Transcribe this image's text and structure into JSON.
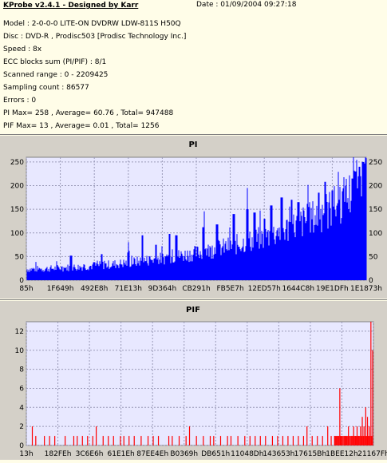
{
  "header": {
    "app_title": "KProbe v2.4.1 - Designed by Karr",
    "date": "Date : 01/09/2004 09:27:18"
  },
  "info_lines": [
    "Model : 2-0-0-0 LITE-ON DVDRW LDW-811S   H50Q",
    "Disc : DVD-R , Prodisc503   [Prodisc Technology Inc.]",
    "Speed : 8x",
    "ECC blocks sum (PI/PIF) : 8/1",
    "Scanned range : 0 - 2209425",
    "Sampling count : 86577",
    "Errors : 0",
    "PI Max= 258 , Average= 60.76 , Total= 947488",
    "PIF Max= 13 , Average= 0.01 , Total= 1256"
  ],
  "colors": {
    "info_bg": "#fffde8",
    "panel_bg": "#d4d0c8",
    "plot_bg": "#e8e8ff",
    "pi_color": "#0000ff",
    "pif_color": "#ff0000"
  },
  "chart_data": [
    {
      "type": "area",
      "title": "PI",
      "ylim": [
        0,
        260
      ],
      "yticks": [
        0,
        50,
        100,
        150,
        200,
        250
      ],
      "xticklabels": [
        "85h",
        "1F649h",
        "492E8h",
        "71E13h",
        "9D364h",
        "CB291h",
        "FB5E7h",
        "12ED57h",
        "1644C8h",
        "19E1DFh",
        "1E1873h"
      ],
      "grid": true,
      "envelope": [
        [
          0,
          25
        ],
        [
          5,
          26
        ],
        [
          10,
          28
        ],
        [
          15,
          30
        ],
        [
          20,
          33
        ],
        [
          25,
          36
        ],
        [
          30,
          40
        ],
        [
          35,
          45
        ],
        [
          40,
          50
        ],
        [
          45,
          56
        ],
        [
          50,
          62
        ],
        [
          55,
          70
        ],
        [
          60,
          78
        ],
        [
          65,
          88
        ],
        [
          70,
          98
        ],
        [
          75,
          112
        ],
        [
          80,
          128
        ],
        [
          85,
          145
        ],
        [
          90,
          165
        ],
        [
          95,
          195
        ],
        [
          98,
          220
        ],
        [
          100,
          245
        ]
      ],
      "peaks": [
        [
          13,
          52
        ],
        [
          22,
          55
        ],
        [
          30,
          62
        ],
        [
          34,
          95
        ],
        [
          38,
          75
        ],
        [
          42,
          98
        ],
        [
          44,
          95
        ],
        [
          52,
          112
        ],
        [
          56,
          118
        ],
        [
          61,
          140
        ],
        [
          65,
          150
        ],
        [
          67,
          143
        ],
        [
          70,
          130
        ],
        [
          72,
          158
        ],
        [
          75,
          175
        ],
        [
          78,
          170
        ],
        [
          80,
          165
        ],
        [
          83,
          155
        ],
        [
          86,
          185
        ],
        [
          88,
          160
        ],
        [
          90,
          190
        ],
        [
          92,
          170
        ],
        [
          94,
          200
        ],
        [
          96,
          215
        ],
        [
          97,
          230
        ],
        [
          98,
          240
        ],
        [
          99,
          250
        ],
        [
          100,
          258
        ]
      ]
    },
    {
      "type": "bar",
      "title": "PIF",
      "ylim": [
        0,
        13
      ],
      "yticks": [
        0,
        2,
        4,
        6,
        8,
        10,
        12
      ],
      "xticklabels": [
        "13h",
        "182FEh",
        "3C6E6h",
        "61E1Eh",
        "87EE4Eh",
        "B0369h",
        "DB651h",
        "11048Dh",
        "143653h",
        "17615Bh",
        "1BEE12h",
        "21167Fh"
      ],
      "grid": true,
      "spikes": [
        [
          1.5,
          2
        ],
        [
          2.5,
          1
        ],
        [
          5,
          1
        ],
        [
          6.5,
          1
        ],
        [
          8,
          1
        ],
        [
          11,
          1
        ],
        [
          13.5,
          1
        ],
        [
          14.5,
          1
        ],
        [
          16,
          1
        ],
        [
          17.5,
          1
        ],
        [
          19,
          1
        ],
        [
          20,
          2
        ],
        [
          22,
          1
        ],
        [
          23.5,
          1
        ],
        [
          25,
          1
        ],
        [
          27,
          1
        ],
        [
          28,
          1
        ],
        [
          29.5,
          1
        ],
        [
          31,
          1
        ],
        [
          33,
          1
        ],
        [
          35,
          1
        ],
        [
          36.5,
          1
        ],
        [
          38,
          1
        ],
        [
          41,
          1
        ],
        [
          42,
          1
        ],
        [
          44,
          1
        ],
        [
          46,
          1
        ],
        [
          47,
          2
        ],
        [
          49,
          1
        ],
        [
          51,
          1
        ],
        [
          53,
          1
        ],
        [
          54,
          1
        ],
        [
          56,
          1
        ],
        [
          58,
          1
        ],
        [
          59,
          1
        ],
        [
          61,
          1
        ],
        [
          63,
          1
        ],
        [
          64.5,
          1
        ],
        [
          66,
          1
        ],
        [
          67.5,
          1
        ],
        [
          69,
          1
        ],
        [
          71,
          1
        ],
        [
          72.5,
          1
        ],
        [
          74,
          1
        ],
        [
          75.5,
          1
        ],
        [
          77,
          1
        ],
        [
          78.5,
          1
        ],
        [
          80,
          1
        ],
        [
          81,
          2
        ],
        [
          82.5,
          1
        ],
        [
          84,
          1
        ],
        [
          85.5,
          1
        ],
        [
          87,
          2
        ],
        [
          88,
          1
        ],
        [
          89,
          1
        ],
        [
          90,
          1
        ],
        [
          90.5,
          6
        ],
        [
          91,
          1
        ],
        [
          92,
          1
        ],
        [
          93,
          2
        ],
        [
          94,
          1
        ],
        [
          94.5,
          2
        ],
        [
          95,
          1
        ],
        [
          95.5,
          2
        ],
        [
          96,
          1
        ],
        [
          96.5,
          2
        ],
        [
          97,
          3
        ],
        [
          97.5,
          2
        ],
        [
          98,
          4
        ],
        [
          98.5,
          3
        ],
        [
          99,
          2
        ],
        [
          99.5,
          13
        ],
        [
          100,
          10
        ]
      ],
      "baseline_band": [
        [
          89,
          1
        ],
        [
          95,
          1
        ],
        [
          100,
          1
        ]
      ]
    }
  ]
}
